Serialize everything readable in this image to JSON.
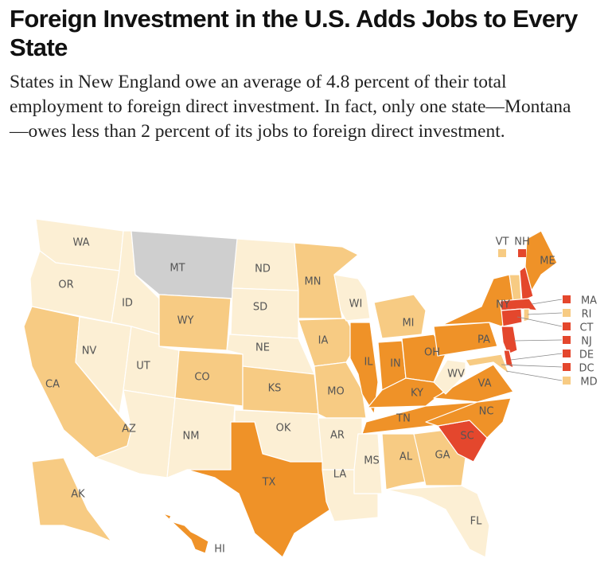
{
  "title": "Foreign Investment in the U.S. Adds Jobs to Every State",
  "subtitle": "States in New England owe an average of 4.8 percent of their total employment to foreign direct investment. In fact, only one state—Montana—owes less than 2 percent of its jobs to foreign direct investment.",
  "states": [
    {
      "label": "WA",
      "color": "#fcefd4"
    },
    {
      "label": "OR",
      "color": "#fcefd4"
    },
    {
      "label": "CA",
      "color": "#f7cb83"
    },
    {
      "label": "NV",
      "color": "#fcefd4"
    },
    {
      "label": "ID",
      "color": "#fcefd4"
    },
    {
      "label": "MT",
      "color": "#cfcfcf"
    },
    {
      "label": "WY",
      "color": "#f7cb83"
    },
    {
      "label": "UT",
      "color": "#fcefd4"
    },
    {
      "label": "AZ",
      "color": "#fcefd4"
    },
    {
      "label": "CO",
      "color": "#f7cb83"
    },
    {
      "label": "NM",
      "color": "#fcefd4"
    },
    {
      "label": "ND",
      "color": "#fcefd4"
    },
    {
      "label": "SD",
      "color": "#fcefd4"
    },
    {
      "label": "NE",
      "color": "#fcefd4"
    },
    {
      "label": "KS",
      "color": "#f7cb83"
    },
    {
      "label": "OK",
      "color": "#fcefd4"
    },
    {
      "label": "TX",
      "color": "#ef9228"
    },
    {
      "label": "MN",
      "color": "#f7cb83"
    },
    {
      "label": "IA",
      "color": "#f7cb83"
    },
    {
      "label": "MO",
      "color": "#f7cb83"
    },
    {
      "label": "AR",
      "color": "#fcefd4"
    },
    {
      "label": "LA",
      "color": "#fcefd4"
    },
    {
      "label": "WI",
      "color": "#fcefd4"
    },
    {
      "label": "IL",
      "color": "#ef9228"
    },
    {
      "label": "MI",
      "color": "#f7cb83"
    },
    {
      "label": "IN",
      "color": "#ef9228"
    },
    {
      "label": "OH",
      "color": "#ef9228"
    },
    {
      "label": "KY",
      "color": "#ef9228"
    },
    {
      "label": "TN",
      "color": "#ef9228"
    },
    {
      "label": "MS",
      "color": "#fcefd4"
    },
    {
      "label": "AL",
      "color": "#f7cb83"
    },
    {
      "label": "GA",
      "color": "#f7cb83"
    },
    {
      "label": "FL",
      "color": "#fcefd4"
    },
    {
      "label": "SC",
      "color": "#e4472d"
    },
    {
      "label": "NC",
      "color": "#ef9228"
    },
    {
      "label": "VA",
      "color": "#ef9228"
    },
    {
      "label": "WV",
      "color": "#fcefd4"
    },
    {
      "label": "PA",
      "color": "#ef9228"
    },
    {
      "label": "NY",
      "color": "#ef9228"
    },
    {
      "label": "ME",
      "color": "#ef9228"
    },
    {
      "label": "AK",
      "color": "#f7cb83"
    },
    {
      "label": "HI",
      "color": "#ef9228"
    },
    {
      "label": "VT",
      "color": "#f7cb83"
    },
    {
      "label": "NH",
      "color": "#e4472d"
    },
    {
      "label": "MA",
      "color": "#e4472d"
    },
    {
      "label": "RI",
      "color": "#f7cb83"
    },
    {
      "label": "CT",
      "color": "#e4472d"
    },
    {
      "label": "NJ",
      "color": "#e4472d"
    },
    {
      "label": "DE",
      "color": "#e4472d"
    },
    {
      "label": "DC",
      "color": "#e4472d"
    },
    {
      "label": "MD",
      "color": "#f7cb83"
    }
  ]
}
